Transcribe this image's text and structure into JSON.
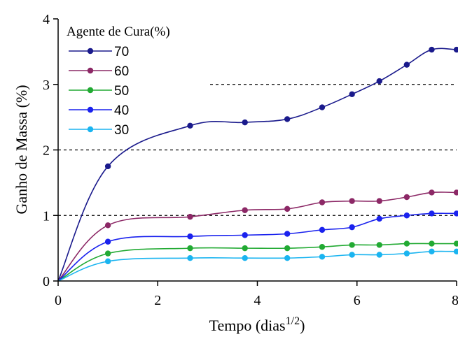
{
  "chart_data": {
    "type": "line",
    "title": "",
    "xlabel": "Tempo (dias",
    "xlabel_superscript": "1/2",
    "xlabel_suffix": ")",
    "ylabel": "Ganho de Massa (%)",
    "xlim": [
      0,
      8
    ],
    "ylim": [
      0,
      4
    ],
    "xticks": [
      "0",
      "2",
      "4",
      "6",
      "8"
    ],
    "yticks": [
      "0",
      "1",
      "2",
      "3",
      "4"
    ],
    "grid": "dashed horizontal at 1, 2, 3",
    "legend": {
      "title": "Agente de Cura(%)",
      "placement": "top-left"
    },
    "series": [
      {
        "name": "70",
        "color": "#1a1a8c",
        "points": [
          [
            0,
            0
          ],
          [
            1,
            1.75
          ],
          [
            2.65,
            2.37
          ],
          [
            3.75,
            2.42
          ],
          [
            4.6,
            2.47
          ],
          [
            5.3,
            2.65
          ],
          [
            5.9,
            2.85
          ],
          [
            6.45,
            3.05
          ],
          [
            7,
            3.3
          ],
          [
            7.5,
            3.53
          ],
          [
            8,
            3.53
          ]
        ]
      },
      {
        "name": "60",
        "color": "#8c2866",
        "points": [
          [
            0,
            0
          ],
          [
            1,
            0.85
          ],
          [
            2.65,
            0.98
          ],
          [
            3.75,
            1.08
          ],
          [
            4.6,
            1.1
          ],
          [
            5.3,
            1.2
          ],
          [
            5.9,
            1.22
          ],
          [
            6.45,
            1.22
          ],
          [
            7,
            1.28
          ],
          [
            7.5,
            1.35
          ],
          [
            8,
            1.35
          ]
        ]
      },
      {
        "name": "50",
        "color": "#22aa33",
        "points": [
          [
            0,
            0
          ],
          [
            1,
            0.42
          ],
          [
            2.65,
            0.5
          ],
          [
            3.75,
            0.5
          ],
          [
            4.6,
            0.5
          ],
          [
            5.3,
            0.52
          ],
          [
            5.9,
            0.55
          ],
          [
            6.45,
            0.55
          ],
          [
            7,
            0.57
          ],
          [
            7.5,
            0.57
          ],
          [
            8,
            0.57
          ]
        ]
      },
      {
        "name": "40",
        "color": "#1a22ee",
        "points": [
          [
            0,
            0
          ],
          [
            1,
            0.6
          ],
          [
            2.65,
            0.68
          ],
          [
            3.75,
            0.7
          ],
          [
            4.6,
            0.72
          ],
          [
            5.3,
            0.78
          ],
          [
            5.9,
            0.82
          ],
          [
            6.45,
            0.95
          ],
          [
            7,
            1.0
          ],
          [
            7.5,
            1.03
          ],
          [
            8,
            1.03
          ]
        ]
      },
      {
        "name": "30",
        "color": "#1ab4f0",
        "points": [
          [
            0,
            0
          ],
          [
            1,
            0.3
          ],
          [
            2.65,
            0.35
          ],
          [
            3.75,
            0.35
          ],
          [
            4.6,
            0.35
          ],
          [
            5.3,
            0.37
          ],
          [
            5.9,
            0.4
          ],
          [
            6.45,
            0.4
          ],
          [
            7,
            0.42
          ],
          [
            7.5,
            0.45
          ],
          [
            8,
            0.45
          ]
        ]
      }
    ]
  }
}
